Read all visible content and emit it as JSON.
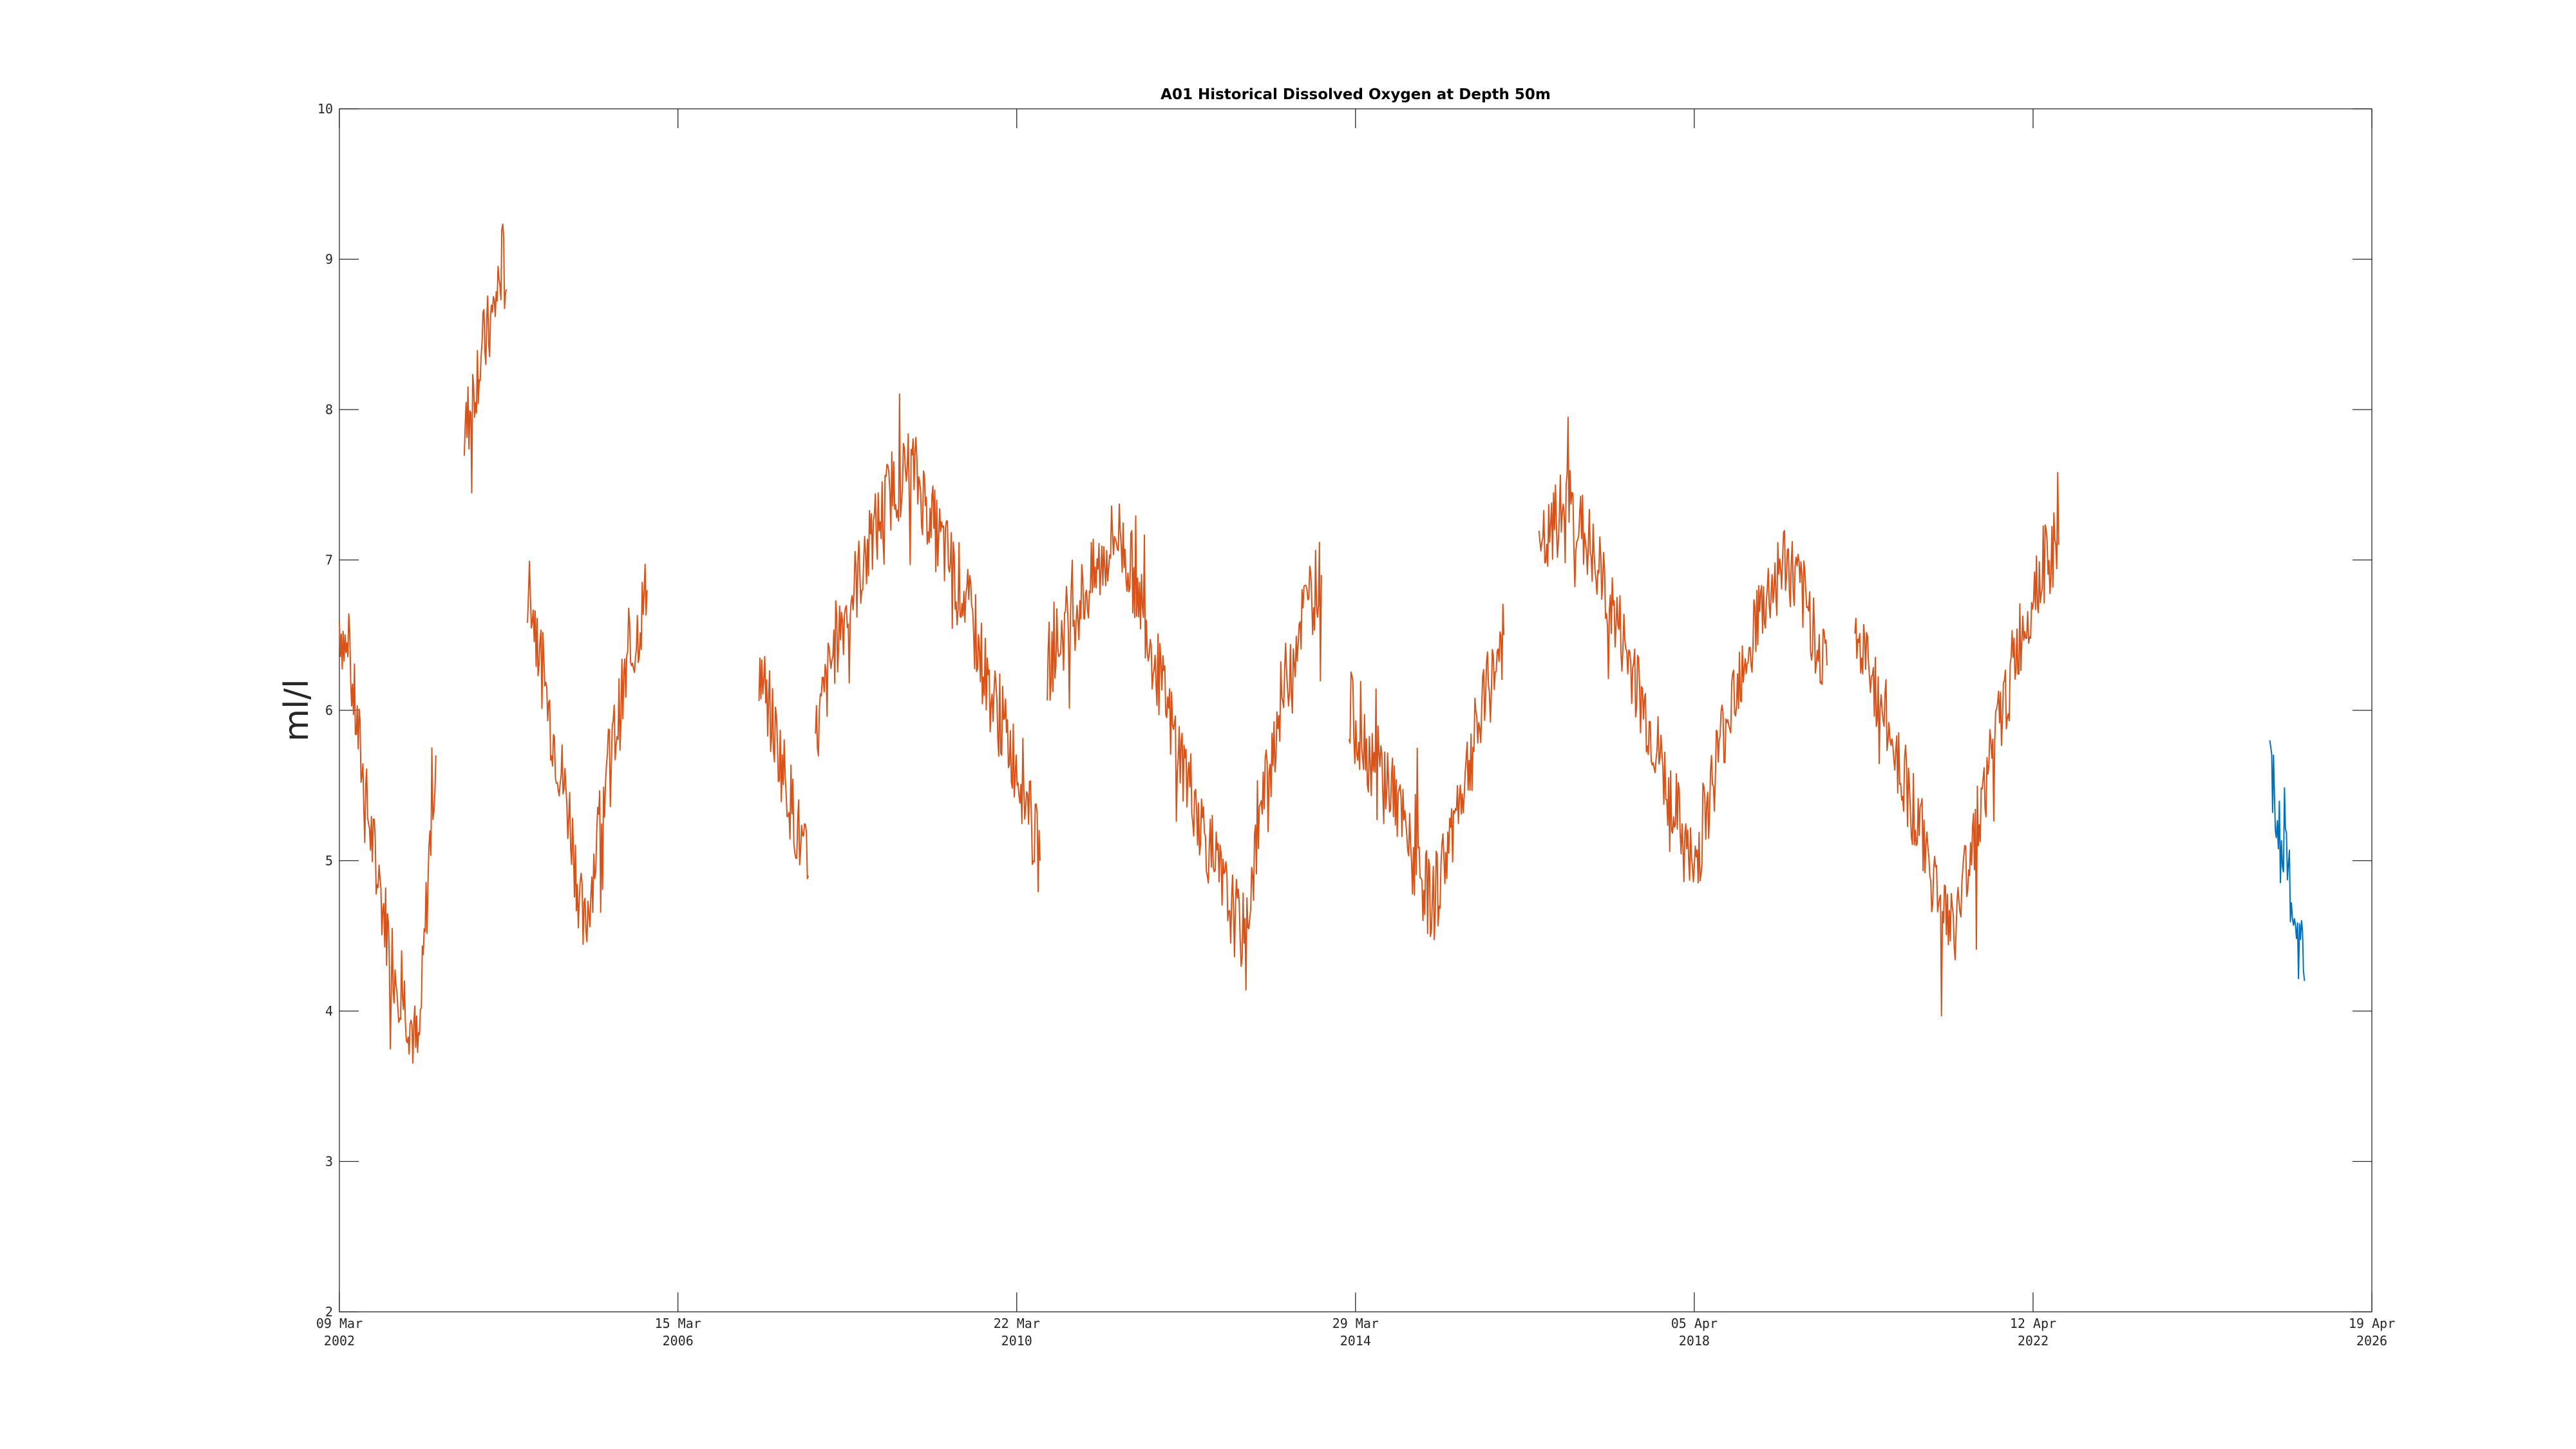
{
  "chart_data": {
    "type": "line",
    "title": "A01 Historical Dissolved Oxygen at Depth 50m",
    "xlabel": "",
    "ylabel": "ml/l",
    "xlim": [
      "2002-03-09",
      "2026-04-19"
    ],
    "ylim": [
      2,
      10
    ],
    "yticks": [
      2,
      3,
      4,
      5,
      6,
      7,
      8,
      9,
      10
    ],
    "xticks": [
      {
        "date": "2002-03-09",
        "line1": "09 Mar",
        "line2": "2002"
      },
      {
        "date": "2006-03-15",
        "line1": "15 Mar",
        "line2": "2006"
      },
      {
        "date": "2010-03-22",
        "line1": "22 Mar",
        "line2": "2010"
      },
      {
        "date": "2014-03-29",
        "line1": "29 Mar",
        "line2": "2014"
      },
      {
        "date": "2018-04-05",
        "line1": "05 Apr",
        "line2": "2018"
      },
      {
        "date": "2022-04-12",
        "line1": "12 Apr",
        "line2": "2022"
      },
      {
        "date": "2026-04-19",
        "line1": "19 Apr",
        "line2": "2026"
      }
    ],
    "grid": false,
    "legend": "none",
    "series": [
      {
        "color": "#D95319",
        "segments": [
          [
            [
              "2002-03-09",
              6.6
            ],
            [
              "2002-05-01",
              6.2
            ],
            [
              "2002-07-01",
              5.4
            ],
            [
              "2002-09-01",
              4.8
            ],
            [
              "2002-11-01",
              4.3
            ],
            [
              "2003-01-01",
              4.0
            ],
            [
              "2003-02-15",
              3.7
            ],
            [
              "2003-04-01",
              5.0
            ],
            [
              "2003-05-01",
              5.7
            ]
          ],
          [
            [
              "2003-09-01",
              7.8
            ],
            [
              "2003-11-01",
              8.3
            ],
            [
              "2004-01-01",
              8.6
            ],
            [
              "2004-02-15",
              9.0
            ],
            [
              "2004-03-01",
              8.8
            ]
          ],
          [
            [
              "2004-06-01",
              6.9
            ],
            [
              "2004-09-01",
              6.0
            ],
            [
              "2004-12-01",
              5.3
            ],
            [
              "2005-02-01",
              4.5
            ],
            [
              "2005-05-01",
              5.5
            ],
            [
              "2005-08-01",
              6.2
            ],
            [
              "2005-11-01",
              6.8
            ]
          ],
          [
            [
              "2007-03-01",
              6.3
            ],
            [
              "2007-07-01",
              5.5
            ],
            [
              "2007-10-01",
              4.9
            ]
          ],
          [
            [
              "2007-11-01",
              5.8
            ],
            [
              "2008-02-01",
              6.5
            ],
            [
              "2008-06-01",
              7.0
            ],
            [
              "2008-10-01",
              7.5
            ],
            [
              "2009-01-01",
              7.6
            ],
            [
              "2009-04-01",
              7.2
            ],
            [
              "2009-08-01",
              6.8
            ],
            [
              "2009-12-01",
              6.1
            ],
            [
              "2010-04-01",
              5.6
            ],
            [
              "2010-07-01",
              5.0
            ]
          ],
          [
            [
              "2010-08-01",
              6.3
            ],
            [
              "2010-11-01",
              6.6
            ],
            [
              "2011-03-01",
              6.9
            ],
            [
              "2011-06-01",
              7.2
            ],
            [
              "2011-09-01",
              6.8
            ],
            [
              "2012-01-01",
              6.0
            ],
            [
              "2012-05-01",
              5.4
            ],
            [
              "2012-09-01",
              4.8
            ],
            [
              "2012-12-01",
              4.5
            ],
            [
              "2013-02-01",
              5.2
            ],
            [
              "2013-05-01",
              6.0
            ],
            [
              "2013-08-01",
              6.6
            ],
            [
              "2013-11-01",
              6.9
            ]
          ],
          [
            [
              "2014-03-01",
              6.0
            ],
            [
              "2014-06-01",
              5.7
            ],
            [
              "2014-09-01",
              5.5
            ],
            [
              "2014-12-01",
              5.0
            ],
            [
              "2015-03-01",
              4.7
            ],
            [
              "2015-06-01",
              5.3
            ],
            [
              "2015-10-01",
              6.0
            ],
            [
              "2016-01-01",
              6.5
            ]
          ],
          [
            [
              "2016-06-01",
              7.0
            ],
            [
              "2016-10-01",
              7.4
            ],
            [
              "2017-01-01",
              7.1
            ],
            [
              "2017-05-01",
              6.6
            ],
            [
              "2017-09-01",
              6.0
            ],
            [
              "2018-01-01",
              5.4
            ],
            [
              "2018-04-01",
              4.9
            ],
            [
              "2018-07-01",
              5.6
            ],
            [
              "2018-10-01",
              6.2
            ],
            [
              "2019-01-01",
              6.6
            ],
            [
              "2019-05-01",
              7.0
            ],
            [
              "2019-08-01",
              6.7
            ],
            [
              "2019-11-01",
              6.3
            ]
          ],
          [
            [
              "2020-03-01",
              6.5
            ],
            [
              "2020-07-01",
              6.0
            ],
            [
              "2020-11-01",
              5.4
            ],
            [
              "2021-02-01",
              4.9
            ],
            [
              "2021-05-01",
              4.5
            ],
            [
              "2021-08-01",
              5.2
            ],
            [
              "2021-11-01",
              5.8
            ],
            [
              "2022-02-01",
              6.4
            ],
            [
              "2022-05-01",
              6.9
            ],
            [
              "2022-08-01",
              7.1
            ]
          ]
        ]
      },
      {
        "color": "#0072BD",
        "segments": [
          [
            [
              "2025-02-01",
              5.6
            ],
            [
              "2025-03-01",
              5.3
            ],
            [
              "2025-04-01",
              5.0
            ],
            [
              "2025-05-01",
              4.8
            ],
            [
              "2025-06-01",
              4.5
            ],
            [
              "2025-07-01",
              4.2
            ]
          ]
        ]
      }
    ]
  }
}
